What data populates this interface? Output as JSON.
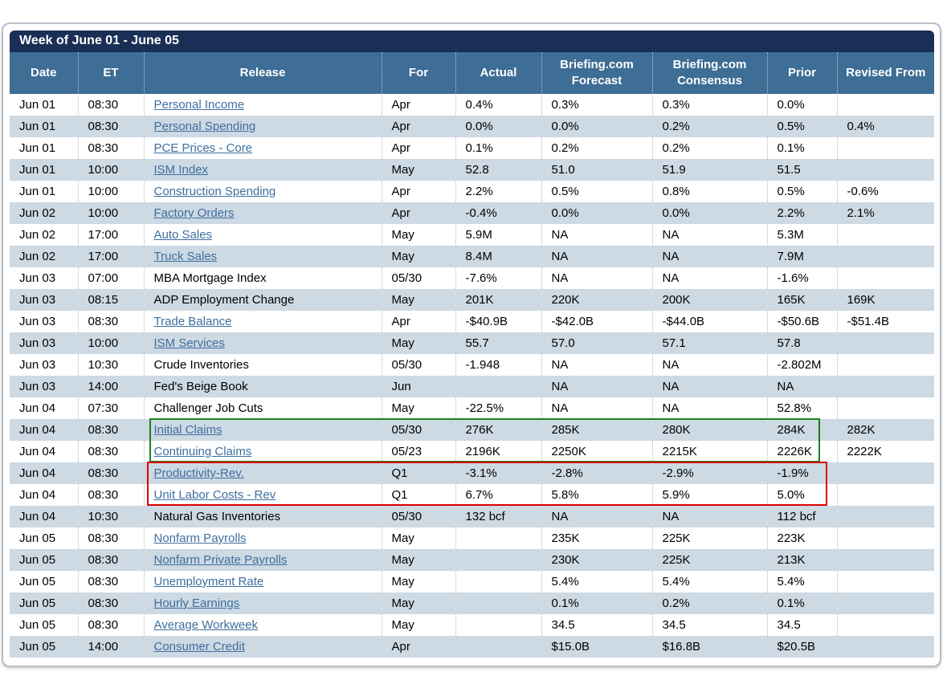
{
  "table": {
    "title": "Week of June 01 - June 05",
    "columns": [
      "Date",
      "ET",
      "Release",
      "For",
      "Actual",
      "Briefing.com Forecast",
      "Briefing.com Consensus",
      "Prior",
      "Revised From"
    ],
    "rows": [
      {
        "date": "Jun 01",
        "et": "08:30",
        "release": "Personal Income",
        "is_link": true,
        "period": "Apr",
        "actual": "0.4%",
        "forecast": "0.3%",
        "consensus": "0.3%",
        "prior": "0.0%",
        "revised": ""
      },
      {
        "date": "Jun 01",
        "et": "08:30",
        "release": "Personal Spending",
        "is_link": true,
        "period": "Apr",
        "actual": "0.0%",
        "forecast": "0.0%",
        "consensus": "0.2%",
        "prior": "0.5%",
        "revised": "0.4%"
      },
      {
        "date": "Jun 01",
        "et": "08:30",
        "release": "PCE Prices - Core",
        "is_link": true,
        "period": "Apr",
        "actual": "0.1%",
        "forecast": "0.2%",
        "consensus": "0.2%",
        "prior": "0.1%",
        "revised": ""
      },
      {
        "date": "Jun 01",
        "et": "10:00",
        "release": "ISM Index",
        "is_link": true,
        "period": "May",
        "actual": "52.8",
        "forecast": "51.0",
        "consensus": "51.9",
        "prior": "51.5",
        "revised": ""
      },
      {
        "date": "Jun 01",
        "et": "10:00",
        "release": "Construction Spending",
        "is_link": true,
        "period": "Apr",
        "actual": "2.2%",
        "forecast": "0.5%",
        "consensus": "0.8%",
        "prior": "0.5%",
        "revised": "-0.6%"
      },
      {
        "date": "Jun 02",
        "et": "10:00",
        "release": "Factory Orders",
        "is_link": true,
        "period": "Apr",
        "actual": "-0.4%",
        "forecast": "0.0%",
        "consensus": "0.0%",
        "prior": "2.2%",
        "revised": "2.1%"
      },
      {
        "date": "Jun 02",
        "et": "17:00",
        "release": "Auto Sales",
        "is_link": true,
        "period": "May",
        "actual": "5.9M",
        "forecast": "NA",
        "consensus": "NA",
        "prior": "5.3M",
        "revised": ""
      },
      {
        "date": "Jun 02",
        "et": "17:00",
        "release": "Truck Sales",
        "is_link": true,
        "period": "May",
        "actual": "8.4M",
        "forecast": "NA",
        "consensus": "NA",
        "prior": "7.9M",
        "revised": ""
      },
      {
        "date": "Jun 03",
        "et": "07:00",
        "release": "MBA Mortgage Index",
        "is_link": false,
        "period": "05/30",
        "actual": "-7.6%",
        "forecast": "NA",
        "consensus": "NA",
        "prior": "-1.6%",
        "revised": ""
      },
      {
        "date": "Jun 03",
        "et": "08:15",
        "release": "ADP Employment Change",
        "is_link": false,
        "period": "May",
        "actual": "201K",
        "forecast": "220K",
        "consensus": "200K",
        "prior": "165K",
        "revised": "169K"
      },
      {
        "date": "Jun 03",
        "et": "08:30",
        "release": "Trade Balance",
        "is_link": true,
        "period": "Apr",
        "actual": "-$40.9B",
        "forecast": "-$42.0B",
        "consensus": "-$44.0B",
        "prior": "-$50.6B",
        "revised": "-$51.4B"
      },
      {
        "date": "Jun 03",
        "et": "10:00",
        "release": "ISM Services",
        "is_link": true,
        "period": "May",
        "actual": "55.7",
        "forecast": "57.0",
        "consensus": "57.1",
        "prior": "57.8",
        "revised": ""
      },
      {
        "date": "Jun 03",
        "et": "10:30",
        "release": "Crude Inventories",
        "is_link": false,
        "period": "05/30",
        "actual": "-1.948",
        "forecast": "NA",
        "consensus": "NA",
        "prior": "-2.802M",
        "revised": ""
      },
      {
        "date": "Jun 03",
        "et": "14:00",
        "release": "Fed's Beige Book",
        "is_link": false,
        "period": "Jun",
        "actual": "",
        "forecast": "NA",
        "consensus": "NA",
        "prior": "NA",
        "revised": ""
      },
      {
        "date": "Jun 04",
        "et": "07:30",
        "release": "Challenger Job Cuts",
        "is_link": false,
        "period": "May",
        "actual": "-22.5%",
        "forecast": "NA",
        "consensus": "NA",
        "prior": "52.8%",
        "revised": ""
      },
      {
        "date": "Jun 04",
        "et": "08:30",
        "release": "Initial Claims",
        "is_link": true,
        "period": "05/30",
        "actual": "276K",
        "forecast": "285K",
        "consensus": "280K",
        "prior": "284K",
        "revised": "282K"
      },
      {
        "date": "Jun 04",
        "et": "08:30",
        "release": "Continuing Claims",
        "is_link": true,
        "period": "05/23",
        "actual": "2196K",
        "forecast": "2250K",
        "consensus": "2215K",
        "prior": "2226K",
        "revised": "2222K"
      },
      {
        "date": "Jun 04",
        "et": "08:30",
        "release": "Productivity-Rev.",
        "is_link": true,
        "period": "Q1",
        "actual": "-3.1%",
        "forecast": "-2.8%",
        "consensus": "-2.9%",
        "prior": "-1.9%",
        "revised": ""
      },
      {
        "date": "Jun 04",
        "et": "08:30",
        "release": "Unit Labor Costs - Rev",
        "is_link": true,
        "period": "Q1",
        "actual": "6.7%",
        "forecast": "5.8%",
        "consensus": "5.9%",
        "prior": "5.0%",
        "revised": ""
      },
      {
        "date": "Jun 04",
        "et": "10:30",
        "release": "Natural Gas Inventories",
        "is_link": false,
        "period": "05/30",
        "actual": "132 bcf",
        "forecast": "NA",
        "consensus": "NA",
        "prior": "112 bcf",
        "revised": ""
      },
      {
        "date": "Jun 05",
        "et": "08:30",
        "release": "Nonfarm Payrolls",
        "is_link": true,
        "period": "May",
        "actual": "",
        "forecast": "235K",
        "consensus": "225K",
        "prior": "223K",
        "revised": ""
      },
      {
        "date": "Jun 05",
        "et": "08:30",
        "release": "Nonfarm Private Payrolls",
        "is_link": true,
        "period": "May",
        "actual": "",
        "forecast": "230K",
        "consensus": "225K",
        "prior": "213K",
        "revised": ""
      },
      {
        "date": "Jun 05",
        "et": "08:30",
        "release": "Unemployment Rate",
        "is_link": true,
        "period": "May",
        "actual": "",
        "forecast": "5.4%",
        "consensus": "5.4%",
        "prior": "5.4%",
        "revised": ""
      },
      {
        "date": "Jun 05",
        "et": "08:30",
        "release": "Hourly Earnings",
        "is_link": true,
        "period": "May",
        "actual": "",
        "forecast": "0.1%",
        "consensus": "0.2%",
        "prior": "0.1%",
        "revised": ""
      },
      {
        "date": "Jun 05",
        "et": "08:30",
        "release": "Average Workweek",
        "is_link": true,
        "period": "May",
        "actual": "",
        "forecast": "34.5",
        "consensus": "34.5",
        "prior": "34.5",
        "revised": ""
      },
      {
        "date": "Jun 05",
        "et": "14:00",
        "release": "Consumer Credit",
        "is_link": true,
        "period": "Apr",
        "actual": "",
        "forecast": "$15.0B",
        "consensus": "$16.8B",
        "prior": "$20.5B",
        "revised": ""
      }
    ]
  },
  "highlights": {
    "green_box": {
      "color": "#1e7e1e",
      "rows": [
        "Initial Claims",
        "Continuing Claims"
      ]
    },
    "red_box": {
      "color": "#dd0000",
      "rows": [
        "Productivity-Rev.",
        "Unit Labor Costs - Rev"
      ]
    }
  },
  "colors": {
    "title_bar_bg": "#1a2f55",
    "header_bg": "#3e6d96",
    "row_alt_bg": "#cdd9e3",
    "link": "#3d6f9f"
  }
}
